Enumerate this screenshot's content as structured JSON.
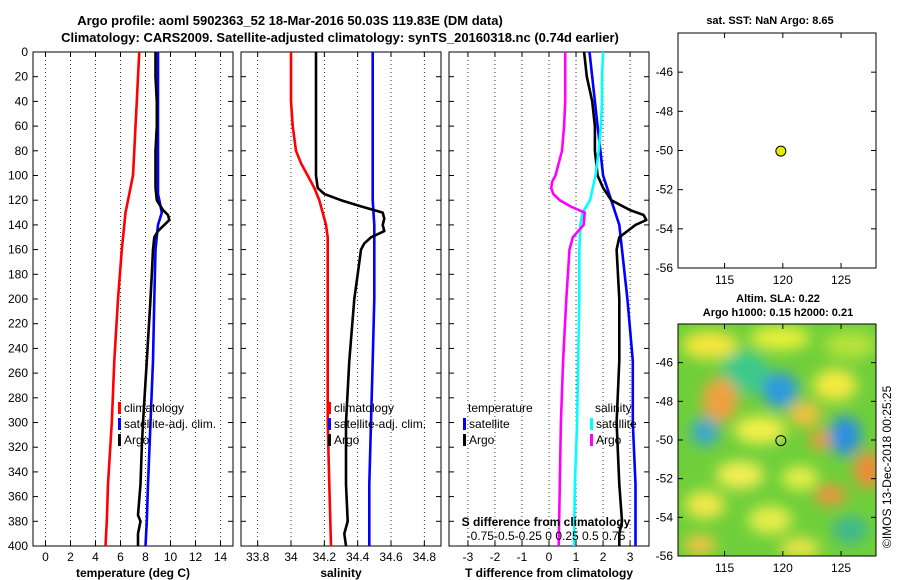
{
  "title_line1": "Argo profile: aoml 5902363_52 18-Mar-2016 50.03S 119.83E (DM data)",
  "title_line2": "Climatology: CARS2009. Satellite-adjusted climatology: synTS_20160318.nc (0.74d earlier)",
  "watermark": "©IMOS 13-Dec-2018 00:25:25",
  "colors": {
    "climatology": "#ff0000",
    "satellite": "#0000ff",
    "argo": "#000000",
    "sal_sat": "#00ffff",
    "sal_argo": "#ff00ff"
  },
  "chart_data": [
    {
      "id": "temperature",
      "type": "line",
      "xlabel": "temperature (deg C)",
      "ylabel": "",
      "xlim": [
        -1,
        15
      ],
      "ylim": [
        400,
        0
      ],
      "xticks": [
        0,
        2,
        4,
        6,
        8,
        10,
        12,
        14
      ],
      "yticks": [
        0,
        20,
        40,
        60,
        80,
        100,
        120,
        140,
        160,
        180,
        200,
        220,
        240,
        260,
        280,
        300,
        320,
        340,
        360,
        380,
        400
      ],
      "legend": {
        "placement": "lower-center",
        "entries": [
          "climatology",
          "satellite-adj. clim.",
          "Argo"
        ]
      },
      "series": [
        {
          "name": "climatology",
          "depth": [
            0,
            20,
            40,
            60,
            80,
            100,
            110,
            120,
            130,
            140,
            160,
            200,
            250,
            300,
            350,
            380,
            400
          ],
          "values": [
            7.5,
            7.4,
            7.3,
            7.2,
            7.1,
            7.0,
            6.8,
            6.6,
            6.4,
            6.3,
            6.1,
            5.8,
            5.5,
            5.3,
            5.0,
            4.9,
            4.8
          ]
        },
        {
          "name": "satellite-adj. clim.",
          "depth": [
            0,
            20,
            40,
            60,
            80,
            100,
            115,
            120,
            130,
            140,
            160,
            200,
            250,
            300,
            350,
            380,
            400
          ],
          "values": [
            9.0,
            9.0,
            9.0,
            9.0,
            9.0,
            9.0,
            9.0,
            9.1,
            9.3,
            9.0,
            8.8,
            8.7,
            8.6,
            8.4,
            8.2,
            8.1,
            8.0
          ]
        },
        {
          "name": "Argo",
          "depth": [
            0,
            20,
            40,
            60,
            80,
            100,
            110,
            120,
            128,
            132,
            136,
            140,
            145,
            150,
            160,
            180,
            200,
            250,
            300,
            320,
            350,
            375,
            380,
            390,
            400
          ],
          "values": [
            8.8,
            8.8,
            8.9,
            8.9,
            8.8,
            8.8,
            8.8,
            8.9,
            9.4,
            9.8,
            9.9,
            9.5,
            9.0,
            8.7,
            8.6,
            8.5,
            8.4,
            8.1,
            7.8,
            7.7,
            7.6,
            7.4,
            7.6,
            7.4,
            7.4
          ]
        }
      ]
    },
    {
      "id": "salinity",
      "type": "line",
      "xlabel": "salinity",
      "xlim": [
        33.7,
        34.9
      ],
      "ylim": [
        400,
        0
      ],
      "xticks": [
        33.8,
        34,
        34.2,
        34.4,
        34.6,
        34.8
      ],
      "legend": {
        "placement": "lower-center",
        "entries": [
          "climatology",
          "satellite-adj. clim.",
          "Argo"
        ]
      },
      "series": [
        {
          "name": "climatology",
          "depth": [
            0,
            20,
            40,
            60,
            80,
            90,
            100,
            110,
            120,
            130,
            140,
            150,
            160,
            200,
            250,
            300,
            350,
            400
          ],
          "values": [
            34.0,
            34.0,
            34.0,
            34.01,
            34.03,
            34.06,
            34.1,
            34.14,
            34.17,
            34.19,
            34.21,
            34.22,
            34.22,
            34.22,
            34.22,
            34.22,
            34.23,
            34.24
          ]
        },
        {
          "name": "satellite-adj. clim.",
          "depth": [
            0,
            20,
            40,
            60,
            80,
            100,
            120,
            140,
            160,
            200,
            250,
            300,
            350,
            400
          ],
          "values": [
            34.49,
            34.49,
            34.49,
            34.49,
            34.49,
            34.49,
            34.49,
            34.5,
            34.5,
            34.5,
            34.49,
            34.48,
            34.47,
            34.47
          ]
        },
        {
          "name": "Argo",
          "depth": [
            0,
            20,
            40,
            60,
            80,
            100,
            110,
            115,
            120,
            125,
            130,
            135,
            140,
            145,
            150,
            155,
            160,
            180,
            200,
            250,
            300,
            320,
            350,
            380,
            390,
            400
          ],
          "values": [
            34.15,
            34.15,
            34.15,
            34.15,
            34.15,
            34.15,
            34.16,
            34.2,
            34.3,
            34.42,
            34.55,
            34.56,
            34.55,
            34.56,
            34.48,
            34.44,
            34.42,
            34.4,
            34.38,
            34.35,
            34.33,
            34.33,
            34.33,
            34.34,
            34.32,
            34.33
          ]
        }
      ]
    },
    {
      "id": "difference",
      "type": "line",
      "xlabel": "T difference from climatology",
      "top_label": "S difference from climatology",
      "xlim": [
        -3.7,
        3.7
      ],
      "ylim": [
        400,
        0
      ],
      "xticks": [
        -3,
        -2,
        -1,
        0,
        1,
        2,
        3
      ],
      "xticks_s": [
        "-0.75",
        "-0.5",
        "-0.25",
        "0",
        "0.25",
        "0.5",
        "0.75"
      ],
      "xticks_s_label": "-0.75-0.5-0.25  0   0.25  0.5 0.75",
      "legend": {
        "placement": "lower-center",
        "entries": [
          "temperature",
          "satellite",
          "Argo",
          "salinity",
          "satellite",
          "Argo"
        ]
      },
      "series": [
        {
          "name": "T satellite",
          "depth": [
            0,
            20,
            40,
            60,
            80,
            100,
            120,
            140,
            160,
            200,
            250,
            300,
            350,
            400
          ],
          "values": [
            1.5,
            1.6,
            1.7,
            1.8,
            1.9,
            2.0,
            2.3,
            2.6,
            2.7,
            2.9,
            3.1,
            3.1,
            3.2,
            3.2
          ]
        },
        {
          "name": "T Argo",
          "depth": [
            0,
            20,
            40,
            60,
            80,
            100,
            110,
            120,
            128,
            132,
            136,
            140,
            150,
            160,
            200,
            250,
            300,
            350,
            380,
            390,
            400
          ],
          "values": [
            1.3,
            1.4,
            1.6,
            1.7,
            1.7,
            1.8,
            2.0,
            2.3,
            3.0,
            3.5,
            3.6,
            3.2,
            2.6,
            2.5,
            2.6,
            2.6,
            2.5,
            2.6,
            2.7,
            2.6,
            2.6
          ]
        },
        {
          "name": "S satellite",
          "depth": [
            0,
            20,
            40,
            60,
            80,
            100,
            120,
            130,
            140,
            160,
            200,
            250,
            300,
            350,
            400
          ],
          "values": [
            0.5,
            0.49,
            0.49,
            0.48,
            0.46,
            0.43,
            0.38,
            0.31,
            0.29,
            0.28,
            0.28,
            0.27,
            0.26,
            0.24,
            0.23
          ]
        },
        {
          "name": "S Argo",
          "depth": [
            0,
            20,
            40,
            60,
            80,
            100,
            105,
            110,
            115,
            120,
            125,
            130,
            140,
            150,
            160,
            200,
            250,
            300,
            350,
            400
          ],
          "values": [
            0.15,
            0.15,
            0.15,
            0.14,
            0.12,
            0.06,
            0.03,
            0.02,
            0.04,
            0.1,
            0.2,
            0.33,
            0.32,
            0.22,
            0.19,
            0.16,
            0.13,
            0.11,
            0.1,
            0.09
          ]
        }
      ]
    },
    {
      "id": "sst_map",
      "type": "scatter",
      "title": "sat. SST: NaN Argo: 8.65",
      "xlim": [
        111,
        128
      ],
      "ylim": [
        -56,
        -44
      ],
      "xticks": [
        115,
        120,
        125
      ],
      "yticks": [
        -46,
        -48,
        -50,
        -52,
        -54,
        -56
      ],
      "points": [
        {
          "x": 119.83,
          "y": -50.03
        }
      ]
    },
    {
      "id": "sla_map",
      "type": "heatmap",
      "title_line1": "Altim. SLA: 0.22",
      "title_line2": "Argo h1000: 0.15 h2000: 0.21",
      "xlim": [
        111,
        128
      ],
      "ylim": [
        -56,
        -44
      ],
      "xticks": [
        115,
        120,
        125
      ],
      "yticks": [
        -46,
        -48,
        -50,
        -52,
        -54,
        -56
      ],
      "points": [
        {
          "x": 119.83,
          "y": -50.03
        }
      ]
    }
  ]
}
